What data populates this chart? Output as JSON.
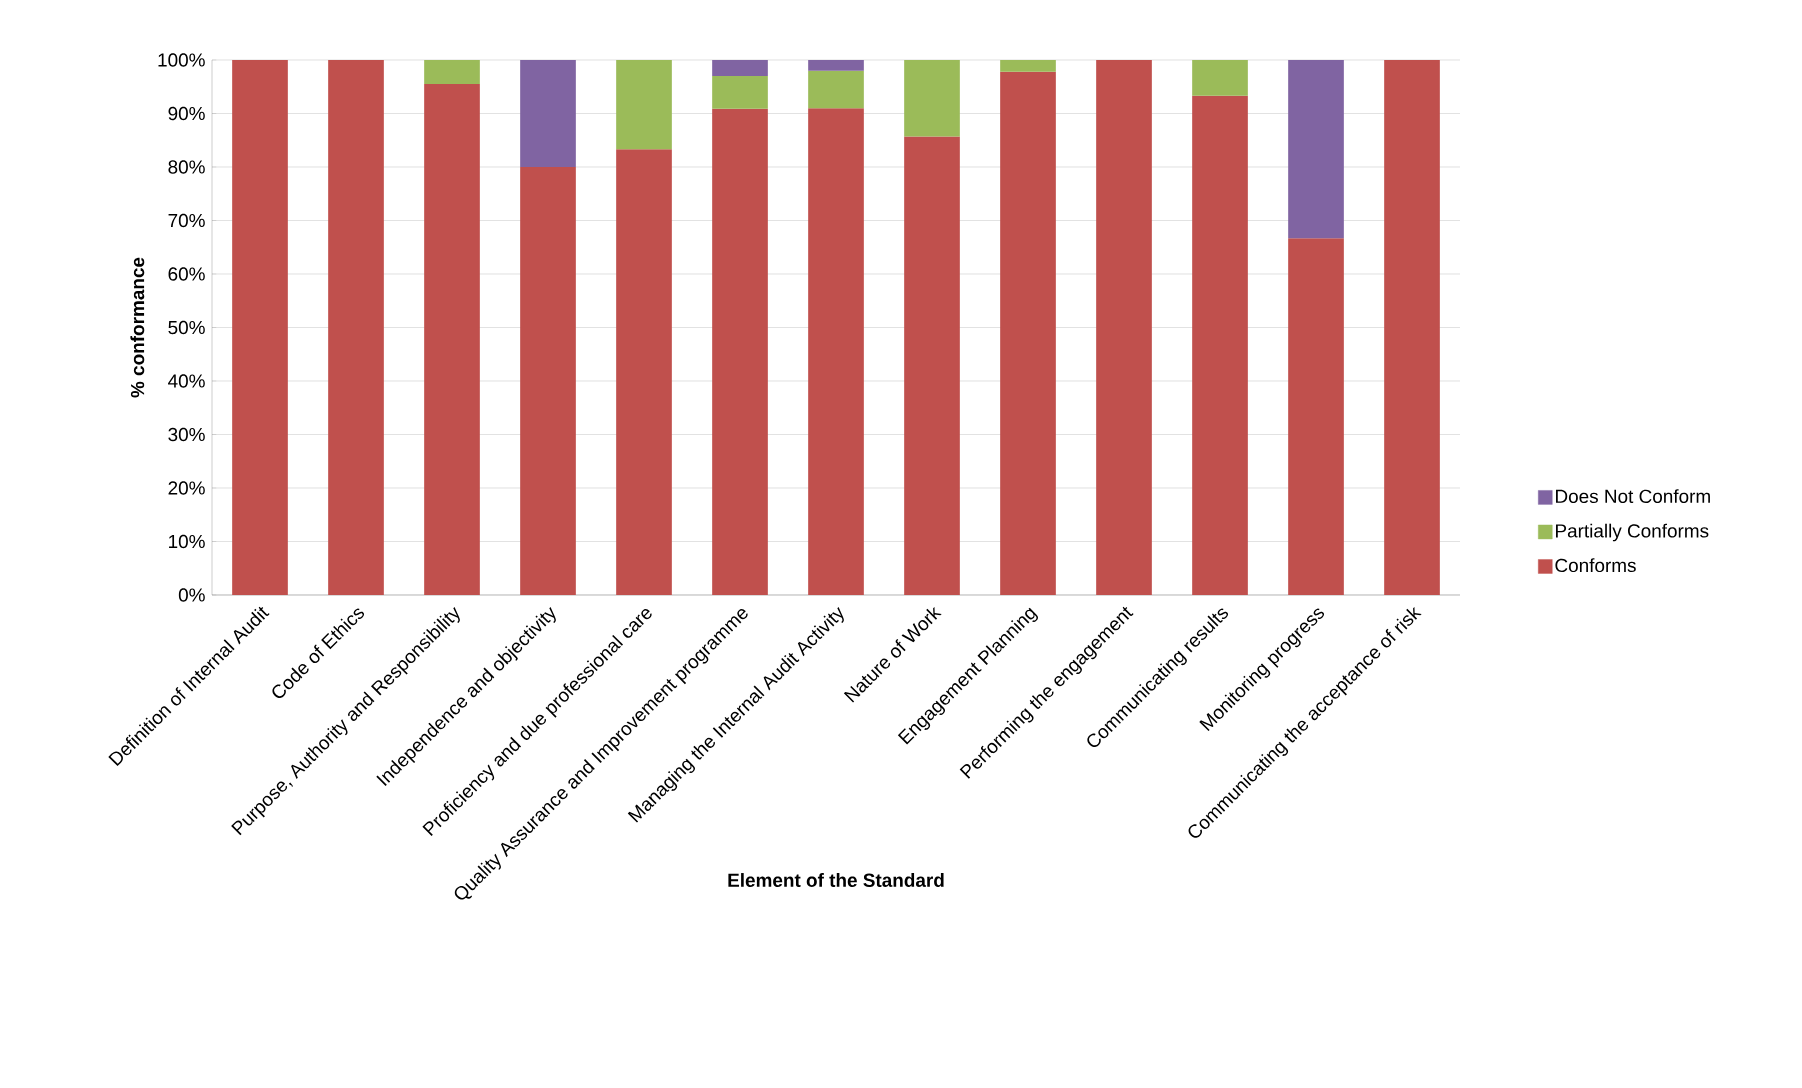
{
  "chart_data": {
    "type": "bar",
    "stacked": true,
    "xlabel": "Element of the Standard",
    "ylabel": "% conformance",
    "categories": [
      "Definition of Internal Audit",
      "Code of Ethics",
      "Purpose, Authority and Responsibility",
      "Independence and objectivity",
      "Proficiency and due professional care",
      "Quality Assurance and Improvement programme",
      "Managing the Internal Audit Activity",
      "Nature of Work",
      "Engagement Planning",
      "Performing the engagement",
      "Communicating results",
      "Monitoring progress",
      "Communicating the acceptance of risk"
    ],
    "series": [
      {
        "name": "Conforms",
        "color": "#c0504d",
        "values": [
          100,
          100,
          95.5,
          80,
          83.3,
          90.9,
          91,
          85.7,
          97.8,
          100,
          93.3,
          66.7,
          100
        ]
      },
      {
        "name": "Partially Conforms",
        "color": "#9bbb59",
        "values": [
          null,
          null,
          4.5,
          null,
          16.7,
          6.1,
          7,
          14.3,
          2.2,
          null,
          6.7,
          null,
          null
        ]
      },
      {
        "name": "Does Not Conform",
        "color": "#8064a2",
        "values": [
          null,
          null,
          null,
          20,
          null,
          3,
          2,
          null,
          null,
          null,
          null,
          33.3,
          null
        ]
      }
    ],
    "ylim": [
      0,
      100
    ],
    "yticks": [
      {
        "value": 0,
        "label": "0%"
      },
      {
        "value": 10,
        "label": "10%"
      },
      {
        "value": 20,
        "label": "20%"
      },
      {
        "value": 30,
        "label": "30%"
      },
      {
        "value": 40,
        "label": "40%"
      },
      {
        "value": 50,
        "label": "50%"
      },
      {
        "value": 60,
        "label": "60%"
      },
      {
        "value": 70,
        "label": "70%"
      },
      {
        "value": 80,
        "label": "80%"
      },
      {
        "value": 90,
        "label": "90%"
      },
      {
        "value": 100,
        "label": "100%"
      }
    ],
    "grid": "y",
    "legend": "right"
  }
}
